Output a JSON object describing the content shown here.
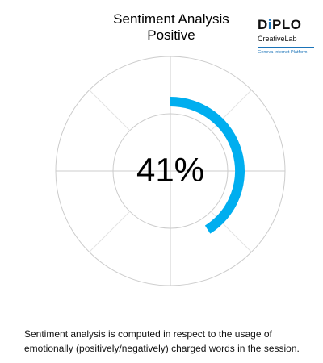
{
  "header": {
    "title": "Sentiment Analysis",
    "subtitle": "Positive"
  },
  "logo": {
    "name": "DiPLO",
    "line": "CreativeLab",
    "tagline": "Geneva Internet Platform",
    "accent_color": "#1a73b8"
  },
  "chart_data": {
    "type": "gauge",
    "metric": "Positive",
    "value": 41,
    "value_label": "41%",
    "max": 100,
    "arc_color": "#00aeef",
    "grid_color": "#cccccc"
  },
  "footnote": {
    "text": "Sentiment analysis is computed in respect to the usage of emotionally (positively/negatively) charged words in the session."
  }
}
